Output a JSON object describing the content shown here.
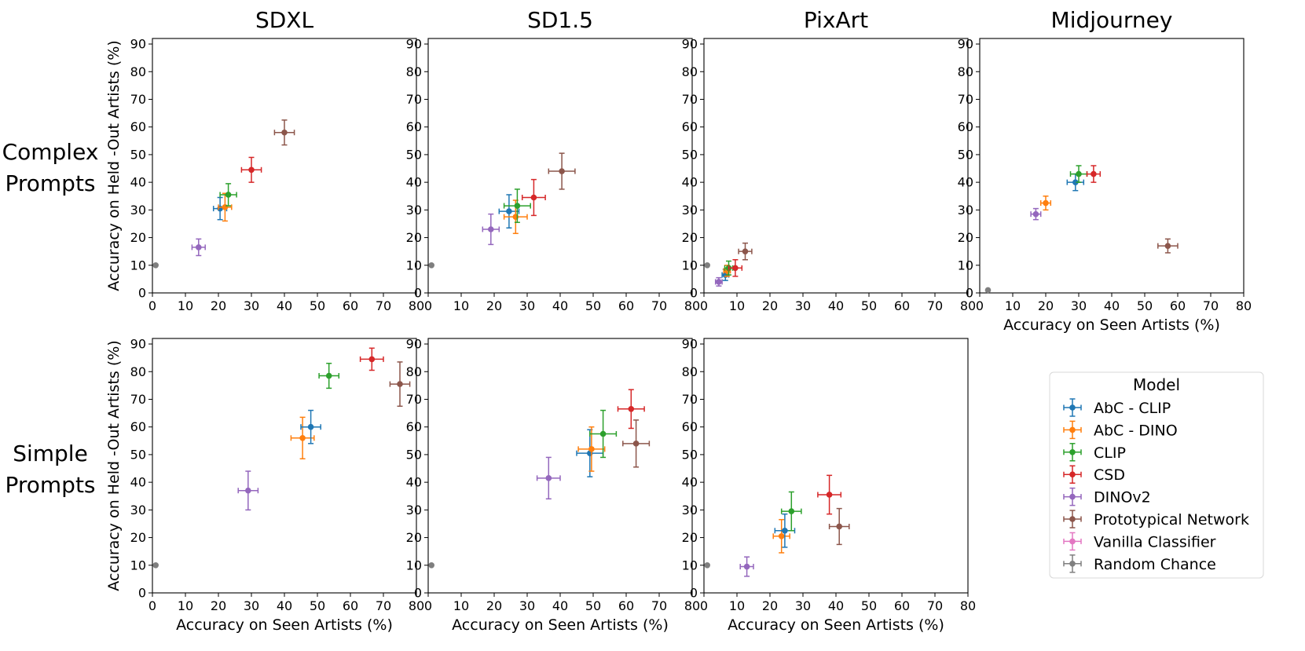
{
  "figure": {
    "column_titles": [
      "SDXL",
      "SD1.5",
      "PixArt",
      "Midjourney"
    ],
    "row_labels": [
      [
        "Complex",
        "Prompts"
      ],
      [
        "Simple",
        "Prompts"
      ]
    ],
    "legend": {
      "title": "Model",
      "placement": "lower-right"
    }
  },
  "colors": {
    "AbC - CLIP": "#1f77b4",
    "AbC - DINO": "#ff7f0e",
    "CLIP": "#2ca02c",
    "CSD": "#d62728",
    "DINOv2": "#9467bd",
    "Prototypical Network": "#8c564b",
    "Vanilla Classifier": "#e377c2",
    "Random Chance": "#7f7f7f"
  },
  "legend_entries": [
    "AbC - CLIP",
    "AbC - DINO",
    "CLIP",
    "CSD",
    "DINOv2",
    "Prototypical Network",
    "Vanilla Classifier",
    "Random Chance"
  ],
  "chart_data": [
    {
      "type": "scatter",
      "title": "SDXL",
      "row": "Complex Prompts",
      "xlabel": "",
      "ylabel": "Accuracy on Held -Out Artists (%)",
      "xlim": [
        0,
        80
      ],
      "ylim": [
        0,
        92
      ],
      "xticks": [
        0,
        10,
        20,
        30,
        40,
        50,
        60,
        70,
        80
      ],
      "yticks": [
        0,
        10,
        20,
        30,
        40,
        50,
        60,
        70,
        80,
        90
      ],
      "points": [
        {
          "series": "Random Chance",
          "x": 1,
          "y": 10,
          "xerr": 0,
          "yerr": 0
        },
        {
          "series": "DINOv2",
          "x": 14,
          "y": 16.5,
          "xerr": 2,
          "yerr": 3
        },
        {
          "series": "AbC - CLIP",
          "x": 20.5,
          "y": 30.5,
          "xerr": 2,
          "yerr": 4
        },
        {
          "series": "AbC - DINO",
          "x": 22,
          "y": 31,
          "xerr": 2,
          "yerr": 5
        },
        {
          "series": "CLIP",
          "x": 23,
          "y": 35.5,
          "xerr": 2.5,
          "yerr": 4
        },
        {
          "series": "CSD",
          "x": 30,
          "y": 44.5,
          "xerr": 3,
          "yerr": 4.5
        },
        {
          "series": "Prototypical Network",
          "x": 40,
          "y": 58,
          "xerr": 3,
          "yerr": 4.5
        }
      ]
    },
    {
      "type": "scatter",
      "title": "SD1.5",
      "row": "Complex Prompts",
      "xlabel": "",
      "ylabel": "",
      "xlim": [
        0,
        80
      ],
      "ylim": [
        0,
        92
      ],
      "xticks": [
        0,
        10,
        20,
        30,
        40,
        50,
        60,
        70,
        80
      ],
      "yticks": [
        0,
        10,
        20,
        30,
        40,
        50,
        60,
        70,
        80,
        90
      ],
      "points": [
        {
          "series": "Random Chance",
          "x": 1,
          "y": 10,
          "xerr": 0,
          "yerr": 0
        },
        {
          "series": "DINOv2",
          "x": 19,
          "y": 23,
          "xerr": 2.5,
          "yerr": 5.5
        },
        {
          "series": "AbC - CLIP",
          "x": 24.5,
          "y": 29.5,
          "xerr": 3,
          "yerr": 6
        },
        {
          "series": "AbC - DINO",
          "x": 26.5,
          "y": 27.5,
          "xerr": 3.5,
          "yerr": 6
        },
        {
          "series": "CLIP",
          "x": 27,
          "y": 31.5,
          "xerr": 4,
          "yerr": 6
        },
        {
          "series": "CSD",
          "x": 32,
          "y": 34.5,
          "xerr": 3.5,
          "yerr": 6.5
        },
        {
          "series": "Prototypical Network",
          "x": 40.5,
          "y": 44,
          "xerr": 4,
          "yerr": 6.5
        }
      ]
    },
    {
      "type": "scatter",
      "title": "PixArt",
      "row": "Complex Prompts",
      "xlabel": "",
      "ylabel": "",
      "xlim": [
        0,
        80
      ],
      "ylim": [
        0,
        92
      ],
      "xticks": [
        0,
        10,
        20,
        30,
        40,
        50,
        60,
        70,
        80
      ],
      "yticks": [
        0,
        10,
        20,
        30,
        40,
        50,
        60,
        70,
        80,
        90
      ],
      "points": [
        {
          "series": "Random Chance",
          "x": 1,
          "y": 10,
          "xerr": 0,
          "yerr": 0
        },
        {
          "series": "DINOv2",
          "x": 4.5,
          "y": 4,
          "xerr": 1,
          "yerr": 1.5
        },
        {
          "series": "AbC - CLIP",
          "x": 6.5,
          "y": 6.5,
          "xerr": 1,
          "yerr": 2
        },
        {
          "series": "AbC - DINO",
          "x": 7,
          "y": 8,
          "xerr": 1,
          "yerr": 2
        },
        {
          "series": "CLIP",
          "x": 7.5,
          "y": 9,
          "xerr": 1.2,
          "yerr": 2.5
        },
        {
          "series": "CSD",
          "x": 9.5,
          "y": 9,
          "xerr": 2,
          "yerr": 3
        },
        {
          "series": "Prototypical Network",
          "x": 12.5,
          "y": 15,
          "xerr": 2,
          "yerr": 3
        }
      ]
    },
    {
      "type": "scatter",
      "title": "Midjourney",
      "row": "Complex Prompts",
      "xlabel": "Accuracy on Seen Artists (%)",
      "ylabel": "",
      "xlim": [
        0,
        80
      ],
      "ylim": [
        0,
        92
      ],
      "xticks": [
        0,
        10,
        20,
        30,
        40,
        50,
        60,
        70,
        80
      ],
      "yticks": [
        0,
        10,
        20,
        30,
        40,
        50,
        60,
        70,
        80,
        90
      ],
      "points": [
        {
          "series": "Random Chance",
          "x": 2.5,
          "y": 1,
          "xerr": 0,
          "yerr": 0
        },
        {
          "series": "DINOv2",
          "x": 17,
          "y": 28.5,
          "xerr": 1.5,
          "yerr": 2
        },
        {
          "series": "AbC - DINO",
          "x": 20,
          "y": 32.5,
          "xerr": 1.5,
          "yerr": 2.5
        },
        {
          "series": "AbC - CLIP",
          "x": 29,
          "y": 40,
          "xerr": 2.5,
          "yerr": 3
        },
        {
          "series": "CLIP",
          "x": 30,
          "y": 43,
          "xerr": 2.5,
          "yerr": 3
        },
        {
          "series": "CSD",
          "x": 34.5,
          "y": 43,
          "xerr": 2,
          "yerr": 3
        },
        {
          "series": "Prototypical Network",
          "x": 57,
          "y": 17,
          "xerr": 3,
          "yerr": 2.5
        }
      ]
    },
    {
      "type": "scatter",
      "title": "",
      "row": "Simple Prompts",
      "xlabel": "Accuracy on Seen Artists (%)",
      "ylabel": "Accuracy on Held -Out Artists (%)",
      "xlim": [
        0,
        80
      ],
      "ylim": [
        0,
        92
      ],
      "xticks": [
        0,
        10,
        20,
        30,
        40,
        50,
        60,
        70,
        80
      ],
      "yticks": [
        0,
        10,
        20,
        30,
        40,
        50,
        60,
        70,
        80,
        90
      ],
      "points": [
        {
          "series": "Random Chance",
          "x": 1,
          "y": 10,
          "xerr": 0,
          "yerr": 0
        },
        {
          "series": "DINOv2",
          "x": 29,
          "y": 37,
          "xerr": 3,
          "yerr": 7
        },
        {
          "series": "AbC - DINO",
          "x": 45.5,
          "y": 56,
          "xerr": 3.5,
          "yerr": 7.5
        },
        {
          "series": "AbC - CLIP",
          "x": 48,
          "y": 60,
          "xerr": 3,
          "yerr": 6
        },
        {
          "series": "CLIP",
          "x": 53.5,
          "y": 78.5,
          "xerr": 3,
          "yerr": 4.5
        },
        {
          "series": "CSD",
          "x": 66.5,
          "y": 84.5,
          "xerr": 3.5,
          "yerr": 4
        },
        {
          "series": "Prototypical Network",
          "x": 75,
          "y": 75.5,
          "xerr": 3,
          "yerr": 8
        }
      ]
    },
    {
      "type": "scatter",
      "title": "",
      "row": "Simple Prompts",
      "xlabel": "Accuracy on Seen Artists (%)",
      "ylabel": "",
      "xlim": [
        0,
        80
      ],
      "ylim": [
        0,
        92
      ],
      "xticks": [
        0,
        10,
        20,
        30,
        40,
        50,
        60,
        70,
        80
      ],
      "yticks": [
        0,
        10,
        20,
        30,
        40,
        50,
        60,
        70,
        80,
        90
      ],
      "points": [
        {
          "series": "Random Chance",
          "x": 1,
          "y": 10,
          "xerr": 0,
          "yerr": 0
        },
        {
          "series": "DINOv2",
          "x": 36.5,
          "y": 41.5,
          "xerr": 3.5,
          "yerr": 7.5
        },
        {
          "series": "AbC - CLIP",
          "x": 49,
          "y": 50.5,
          "xerr": 4,
          "yerr": 8.5
        },
        {
          "series": "AbC - DINO",
          "x": 49.5,
          "y": 52,
          "xerr": 4,
          "yerr": 8
        },
        {
          "series": "CLIP",
          "x": 53,
          "y": 57.5,
          "xerr": 4,
          "yerr": 8.5
        },
        {
          "series": "CSD",
          "x": 61.5,
          "y": 66.5,
          "xerr": 4,
          "yerr": 7
        },
        {
          "series": "Prototypical Network",
          "x": 63,
          "y": 54,
          "xerr": 4,
          "yerr": 8.5
        }
      ]
    },
    {
      "type": "scatter",
      "title": "",
      "row": "Simple Prompts",
      "xlabel": "Accuracy on Seen Artists (%)",
      "ylabel": "",
      "xlim": [
        0,
        80
      ],
      "ylim": [
        0,
        92
      ],
      "xticks": [
        0,
        10,
        20,
        30,
        40,
        50,
        60,
        70,
        80
      ],
      "yticks": [
        0,
        10,
        20,
        30,
        40,
        50,
        60,
        70,
        80,
        90
      ],
      "points": [
        {
          "series": "Random Chance",
          "x": 1,
          "y": 10,
          "xerr": 0,
          "yerr": 0
        },
        {
          "series": "DINOv2",
          "x": 13,
          "y": 9.5,
          "xerr": 2,
          "yerr": 3.5
        },
        {
          "series": "AbC - DINO",
          "x": 23.5,
          "y": 20.5,
          "xerr": 2.5,
          "yerr": 6
        },
        {
          "series": "AbC - CLIP",
          "x": 24.5,
          "y": 22.5,
          "xerr": 3,
          "yerr": 6
        },
        {
          "series": "CLIP",
          "x": 26.5,
          "y": 29.5,
          "xerr": 3,
          "yerr": 7
        },
        {
          "series": "CSD",
          "x": 38,
          "y": 35.5,
          "xerr": 3.5,
          "yerr": 7
        },
        {
          "series": "Prototypical Network",
          "x": 41,
          "y": 24,
          "xerr": 3,
          "yerr": 6.5
        }
      ]
    }
  ]
}
